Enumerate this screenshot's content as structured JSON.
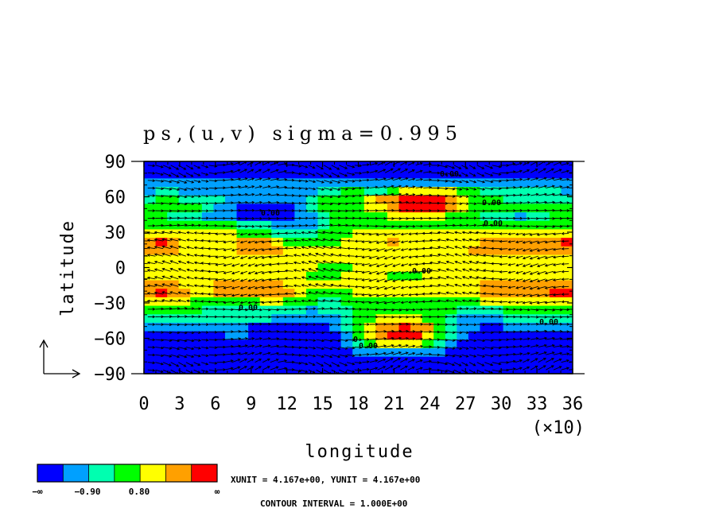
{
  "chart_data": {
    "type": "heatmap",
    "title": "ps,(u,v) sigma=0.995",
    "xlabel": "longitude",
    "ylabel": "latitude",
    "x_multiplier": "(×10)",
    "xlim": [
      0,
      36
    ],
    "ylim": [
      -90,
      90
    ],
    "x_ticks": [
      "0",
      "3",
      "6",
      "9",
      "12",
      "15",
      "18",
      "21",
      "24",
      "27",
      "30",
      "33",
      "36"
    ],
    "y_ticks": [
      "90",
      "60",
      "30",
      "0",
      "−30",
      "−60",
      "−90"
    ],
    "unit_text": "XUNIT = 4.167e+00, YUNIT = 4.167e+00",
    "contour_interval_text": "CONTOUR INTERVAL = 1.000E+00",
    "contour_labels": [
      "0.00",
      "0.00",
      "0.00",
      "0.00",
      "0.00",
      "0.00",
      "0.00",
      "0.00",
      "0"
    ],
    "colorbar": {
      "colors": [
        "#0000ff",
        "#00a0ff",
        "#00ffb0",
        "#00ff00",
        "#ffff00",
        "#ffa000",
        "#ff0000"
      ],
      "tick_labels": [
        "−∞",
        "−0.90",
        "0.80",
        "∞"
      ]
    },
    "field_levels": [
      [
        0,
        0,
        0,
        0,
        0,
        0,
        0,
        0,
        0,
        0,
        0,
        0,
        0,
        0,
        0,
        0,
        0,
        0,
        0,
        0,
        0,
        0,
        0,
        0,
        0,
        0,
        0,
        0,
        0,
        0,
        0,
        0,
        0,
        0,
        0,
        0,
        0
      ],
      [
        0,
        0,
        0,
        0,
        0,
        0,
        0,
        0,
        0,
        0,
        0,
        0,
        0,
        0,
        0,
        0,
        0,
        0,
        0,
        0,
        0,
        0,
        0,
        0,
        0,
        0,
        0,
        0,
        0,
        0,
        0,
        0,
        0,
        0,
        0,
        0,
        0
      ],
      [
        1,
        1,
        1,
        1,
        1,
        1,
        1,
        1,
        1,
        1,
        1,
        1,
        1,
        1,
        1,
        1,
        1,
        1,
        1,
        1,
        1,
        1,
        1,
        1,
        1,
        1,
        1,
        1,
        1,
        1,
        1,
        1,
        1,
        1,
        1,
        1,
        1
      ],
      [
        1,
        2,
        2,
        1,
        1,
        1,
        1,
        1,
        1,
        1,
        1,
        1,
        1,
        1,
        1,
        2,
        2,
        3,
        3,
        2,
        2,
        3,
        4,
        4,
        4,
        4,
        4,
        3,
        3,
        2,
        2,
        2,
        2,
        2,
        2,
        2,
        1
      ],
      [
        2,
        3,
        3,
        2,
        2,
        2,
        2,
        1,
        1,
        1,
        1,
        1,
        1,
        1,
        2,
        3,
        3,
        3,
        3,
        4,
        5,
        5,
        6,
        6,
        6,
        6,
        5,
        4,
        3,
        3,
        3,
        2,
        2,
        2,
        2,
        2,
        2
      ],
      [
        3,
        3,
        3,
        3,
        3,
        2,
        1,
        1,
        0,
        0,
        0,
        0,
        0,
        1,
        2,
        3,
        3,
        3,
        3,
        4,
        4,
        5,
        6,
        6,
        6,
        6,
        5,
        4,
        3,
        3,
        3,
        3,
        3,
        3,
        3,
        3,
        3
      ],
      [
        3,
        3,
        2,
        2,
        2,
        1,
        1,
        1,
        0,
        0,
        0,
        0,
        0,
        1,
        1,
        2,
        3,
        3,
        3,
        3,
        3,
        4,
        4,
        4,
        4,
        4,
        3,
        3,
        3,
        2,
        2,
        2,
        1,
        2,
        2,
        3,
        3
      ],
      [
        3,
        3,
        3,
        3,
        3,
        3,
        3,
        3,
        2,
        2,
        2,
        1,
        1,
        1,
        1,
        2,
        3,
        3,
        3,
        3,
        3,
        3,
        3,
        3,
        3,
        3,
        3,
        3,
        3,
        3,
        3,
        3,
        3,
        3,
        3,
        3,
        3
      ],
      [
        4,
        4,
        4,
        4,
        4,
        4,
        4,
        4,
        3,
        3,
        3,
        2,
        2,
        2,
        2,
        3,
        3,
        3,
        4,
        4,
        4,
        4,
        4,
        4,
        4,
        4,
        4,
        4,
        4,
        4,
        4,
        4,
        4,
        4,
        4,
        4,
        4
      ],
      [
        5,
        6,
        5,
        4,
        4,
        4,
        4,
        4,
        5,
        5,
        5,
        4,
        3,
        3,
        3,
        3,
        3,
        4,
        4,
        4,
        4,
        5,
        4,
        4,
        4,
        4,
        4,
        4,
        4,
        5,
        5,
        5,
        5,
        5,
        5,
        5,
        6
      ],
      [
        5,
        5,
        5,
        4,
        4,
        4,
        4,
        4,
        5,
        5,
        5,
        5,
        4,
        4,
        4,
        4,
        4,
        4,
        4,
        4,
        4,
        4,
        4,
        4,
        4,
        4,
        4,
        4,
        5,
        5,
        5,
        5,
        5,
        5,
        5,
        5,
        5
      ],
      [
        4,
        4,
        4,
        4,
        4,
        4,
        4,
        4,
        4,
        4,
        4,
        4,
        4,
        4,
        4,
        4,
        4,
        4,
        4,
        4,
        4,
        4,
        4,
        4,
        4,
        4,
        4,
        4,
        4,
        4,
        4,
        4,
        4,
        4,
        4,
        4,
        4
      ],
      [
        4,
        4,
        4,
        4,
        4,
        4,
        4,
        4,
        4,
        4,
        4,
        4,
        4,
        4,
        4,
        3,
        3,
        3,
        4,
        4,
        4,
        4,
        4,
        4,
        4,
        4,
        4,
        4,
        4,
        4,
        4,
        4,
        4,
        4,
        4,
        4,
        4
      ],
      [
        4,
        4,
        4,
        4,
        4,
        4,
        4,
        4,
        4,
        4,
        4,
        4,
        4,
        4,
        3,
        3,
        3,
        4,
        4,
        4,
        4,
        3,
        3,
        3,
        4,
        4,
        4,
        4,
        4,
        4,
        4,
        4,
        4,
        4,
        4,
        4,
        4
      ],
      [
        5,
        5,
        5,
        4,
        4,
        4,
        5,
        5,
        5,
        5,
        5,
        5,
        4,
        4,
        4,
        4,
        4,
        4,
        4,
        4,
        4,
        4,
        4,
        4,
        4,
        4,
        4,
        4,
        4,
        5,
        5,
        5,
        5,
        5,
        5,
        5,
        5
      ],
      [
        5,
        6,
        5,
        5,
        4,
        4,
        5,
        5,
        5,
        5,
        5,
        5,
        5,
        4,
        3,
        3,
        3,
        3,
        4,
        4,
        4,
        4,
        4,
        4,
        4,
        4,
        4,
        4,
        4,
        5,
        5,
        5,
        5,
        5,
        5,
        6,
        6
      ],
      [
        4,
        4,
        4,
        4,
        3,
        3,
        3,
        3,
        3,
        3,
        4,
        4,
        3,
        3,
        3,
        2,
        2,
        3,
        3,
        3,
        3,
        3,
        3,
        3,
        3,
        3,
        3,
        3,
        3,
        4,
        4,
        4,
        4,
        4,
        4,
        4,
        4
      ],
      [
        3,
        3,
        3,
        3,
        3,
        2,
        2,
        2,
        2,
        2,
        2,
        2,
        2,
        2,
        1,
        2,
        2,
        2,
        3,
        3,
        3,
        3,
        3,
        3,
        3,
        3,
        3,
        2,
        2,
        2,
        2,
        3,
        3,
        3,
        3,
        3,
        3
      ],
      [
        2,
        2,
        2,
        2,
        2,
        2,
        2,
        2,
        2,
        2,
        2,
        1,
        1,
        1,
        1,
        1,
        1,
        2,
        3,
        3,
        4,
        4,
        4,
        4,
        3,
        3,
        2,
        1,
        1,
        1,
        1,
        2,
        2,
        2,
        2,
        2,
        2
      ],
      [
        1,
        1,
        1,
        1,
        1,
        1,
        1,
        1,
        1,
        0,
        0,
        0,
        0,
        0,
        0,
        0,
        1,
        2,
        3,
        4,
        5,
        5,
        6,
        5,
        5,
        3,
        2,
        1,
        1,
        0,
        0,
        1,
        1,
        1,
        1,
        1,
        1
      ],
      [
        0,
        0,
        0,
        0,
        0,
        0,
        0,
        1,
        1,
        0,
        0,
        0,
        0,
        0,
        0,
        0,
        0,
        1,
        3,
        4,
        5,
        6,
        6,
        6,
        4,
        3,
        2,
        1,
        0,
        0,
        0,
        0,
        0,
        0,
        0,
        0,
        0
      ],
      [
        0,
        0,
        0,
        0,
        0,
        0,
        0,
        0,
        0,
        0,
        0,
        0,
        0,
        0,
        0,
        0,
        0,
        1,
        2,
        3,
        4,
        4,
        4,
        4,
        3,
        2,
        1,
        0,
        0,
        0,
        0,
        0,
        0,
        0,
        0,
        0,
        0
      ],
      [
        0,
        0,
        0,
        0,
        0,
        0,
        0,
        0,
        0,
        0,
        0,
        0,
        0,
        0,
        0,
        0,
        0,
        0,
        1,
        1,
        1,
        1,
        1,
        1,
        1,
        1,
        0,
        0,
        0,
        0,
        0,
        0,
        0,
        0,
        0,
        0,
        0
      ],
      [
        0,
        0,
        0,
        0,
        0,
        0,
        0,
        0,
        0,
        0,
        0,
        0,
        0,
        0,
        0,
        0,
        0,
        0,
        0,
        0,
        0,
        0,
        0,
        0,
        0,
        0,
        0,
        0,
        0,
        0,
        0,
        0,
        0,
        0,
        0,
        0,
        0
      ],
      [
        0,
        0,
        0,
        0,
        0,
        0,
        0,
        0,
        0,
        0,
        0,
        0,
        0,
        0,
        0,
        0,
        0,
        0,
        0,
        0,
        0,
        0,
        0,
        0,
        0,
        0,
        0,
        0,
        0,
        0,
        0,
        0,
        0,
        0,
        0,
        0,
        0
      ]
    ]
  }
}
